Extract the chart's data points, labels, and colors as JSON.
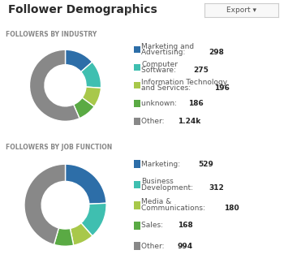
{
  "title": "Follower Demographics",
  "export_btn": "Export ▾",
  "bg_color": "#ffffff",
  "section1_label": "FOLLOWERS BY INDUSTRY",
  "section2_label": "FOLLOWERS BY JOB FUNCTION",
  "industry": {
    "labels": [
      "Marketing and\nAdvertising",
      "Computer\nSoftware",
      "Information Technology\nand Services",
      "unknown",
      "Other"
    ],
    "values": [
      298,
      275,
      196,
      186,
      1240
    ],
    "bold_values": [
      "298",
      "275",
      "196",
      "186",
      "1.24k"
    ],
    "colors": [
      "#2d6ea8",
      "#3fbfb0",
      "#a8c84a",
      "#5aaa44",
      "#888888"
    ]
  },
  "job": {
    "labels": [
      "Marketing",
      "Business\nDevelopment",
      "Media &\nCommunications",
      "Sales",
      "Other"
    ],
    "values": [
      529,
      312,
      180,
      168,
      994
    ],
    "bold_values": [
      "529",
      "312",
      "180",
      "168",
      "994"
    ],
    "colors": [
      "#2d6ea8",
      "#3fbfb0",
      "#a8c84a",
      "#5aaa44",
      "#888888"
    ]
  },
  "title_fontsize": 10,
  "section_fontsize": 5.5,
  "legend_fontsize": 6.5,
  "legend_bold_fontsize": 6.5
}
